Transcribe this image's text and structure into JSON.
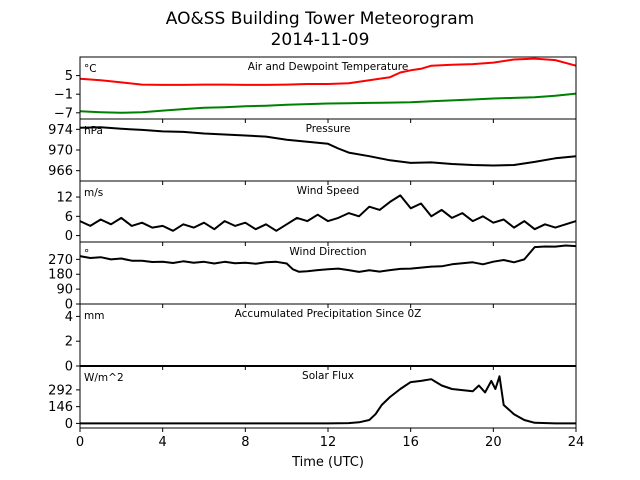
{
  "figure": {
    "title": "AO&SS Building Tower Meteorogram",
    "subtitle": "2014-11-09",
    "xlabel": "Time (UTC)"
  },
  "chart_data": [
    {
      "type": "line",
      "title": "Air and Dewpoint Temperature",
      "unit_label": "°C",
      "xlim": [
        0,
        24
      ],
      "ylim": [
        -9,
        11
      ],
      "yticks": [
        -7,
        -1,
        5
      ],
      "ytick_labels": [
        "−7",
        "−1",
        "5"
      ],
      "xticks": [
        0,
        4,
        8,
        12,
        16,
        20,
        24
      ],
      "colors": [
        "#ff0000",
        "#008000"
      ],
      "series": [
        {
          "x": [
            0,
            1,
            2,
            3,
            4,
            5,
            6,
            7,
            8,
            9,
            10,
            11,
            12,
            13,
            14,
            15,
            15.5,
            16,
            16.5,
            17,
            18,
            19,
            20,
            21,
            22,
            23,
            24
          ],
          "y": [
            4.0,
            3.5,
            2.8,
            2.1,
            2.0,
            2.0,
            2.1,
            2.1,
            2.0,
            2.0,
            2.1,
            2.3,
            2.3,
            2.5,
            3.5,
            4.5,
            6.0,
            6.7,
            7.2,
            8.2,
            8.5,
            8.7,
            9.2,
            10.2,
            10.5,
            10.0,
            8.2
          ]
        },
        {
          "x": [
            0,
            1,
            2,
            3,
            4,
            5,
            6,
            7,
            8,
            9,
            10,
            11,
            12,
            13,
            14,
            15,
            16,
            17,
            18,
            19,
            20,
            21,
            22,
            23,
            24
          ],
          "y": [
            -6.5,
            -6.8,
            -7.0,
            -6.8,
            -6.3,
            -5.8,
            -5.4,
            -5.2,
            -4.9,
            -4.7,
            -4.4,
            -4.2,
            -4.0,
            -3.9,
            -3.8,
            -3.7,
            -3.6,
            -3.3,
            -3.0,
            -2.7,
            -2.4,
            -2.2,
            -2.0,
            -1.5,
            -0.8
          ]
        }
      ]
    },
    {
      "type": "line",
      "title": "Pressure",
      "unit_label": "hPa",
      "xlim": [
        0,
        24
      ],
      "ylim": [
        964,
        976
      ],
      "yticks": [
        966,
        970,
        974
      ],
      "ytick_labels": [
        "966",
        "970",
        "974"
      ],
      "xticks": [
        0,
        4,
        8,
        12,
        16,
        20,
        24
      ],
      "colors": [
        "#000000"
      ],
      "series": [
        {
          "x": [
            0,
            1,
            2,
            3,
            4,
            5,
            6,
            7,
            8,
            9,
            10,
            11,
            12,
            12.5,
            13,
            14,
            15,
            16,
            17,
            18,
            19,
            20,
            21,
            22,
            23,
            24
          ],
          "y": [
            974.3,
            974.4,
            974.1,
            973.9,
            973.6,
            973.5,
            973.2,
            973.0,
            972.8,
            972.6,
            972.0,
            971.6,
            971.2,
            970.3,
            969.5,
            968.8,
            968.0,
            967.5,
            967.6,
            967.3,
            967.1,
            967.0,
            967.1,
            967.7,
            968.4,
            968.8
          ]
        }
      ]
    },
    {
      "type": "line",
      "title": "Wind Speed",
      "unit_label": "m/s",
      "xlim": [
        0,
        24
      ],
      "ylim": [
        -2,
        17
      ],
      "yticks": [
        0,
        6,
        12
      ],
      "ytick_labels": [
        "0",
        "6",
        "12"
      ],
      "xticks": [
        0,
        4,
        8,
        12,
        16,
        20,
        24
      ],
      "colors": [
        "#000000"
      ],
      "series": [
        {
          "x": [
            0,
            0.5,
            1,
            1.5,
            2,
            2.5,
            3,
            3.5,
            4,
            4.5,
            5,
            5.5,
            6,
            6.5,
            7,
            7.5,
            8,
            8.5,
            9,
            9.5,
            10,
            10.5,
            11,
            11.5,
            12,
            12.5,
            13,
            13.5,
            14,
            14.5,
            15,
            15.5,
            16,
            16.5,
            17,
            17.5,
            18,
            18.5,
            19,
            19.5,
            20,
            20.5,
            21,
            21.5,
            22,
            22.5,
            23,
            23.5,
            24
          ],
          "y": [
            4.5,
            3.0,
            5.0,
            3.5,
            5.5,
            3.0,
            4.0,
            2.5,
            3.0,
            1.5,
            3.5,
            2.5,
            4.0,
            2.0,
            4.5,
            3.0,
            4.0,
            2.0,
            3.5,
            1.5,
            3.5,
            5.5,
            4.5,
            6.5,
            4.5,
            5.5,
            7.0,
            6.0,
            9.0,
            8.0,
            10.5,
            12.5,
            8.5,
            10.0,
            6.0,
            8.0,
            5.5,
            7.0,
            4.5,
            6.0,
            4.0,
            5.0,
            2.5,
            4.5,
            2.0,
            3.5,
            2.5,
            3.5,
            4.5
          ]
        }
      ]
    },
    {
      "type": "line",
      "title": "Wind Direction",
      "unit_label": "°",
      "xlim": [
        0,
        24
      ],
      "ylim": [
        0,
        375
      ],
      "yticks": [
        0,
        90,
        180,
        270
      ],
      "ytick_labels": [
        "0",
        "90",
        "180",
        "270"
      ],
      "xticks": [
        0,
        4,
        8,
        12,
        16,
        20,
        24
      ],
      "colors": [
        "#000000"
      ],
      "series": [
        {
          "x": [
            0,
            0.5,
            1,
            1.5,
            2,
            2.5,
            3,
            3.5,
            4,
            4.5,
            5,
            5.5,
            6,
            6.5,
            7,
            7.5,
            8,
            8.5,
            9,
            9.5,
            10,
            10.3,
            10.6,
            11,
            11.5,
            12,
            12.5,
            13,
            13.5,
            14,
            14.5,
            15,
            15.5,
            16,
            16.5,
            17,
            17.5,
            18,
            18.5,
            19,
            19.5,
            20,
            20.5,
            21,
            21.5,
            22,
            22.5,
            23,
            23.5,
            24
          ],
          "y": [
            290,
            278,
            283,
            270,
            275,
            262,
            262,
            254,
            255,
            248,
            258,
            250,
            255,
            245,
            255,
            247,
            250,
            244,
            252,
            255,
            245,
            210,
            195,
            198,
            205,
            210,
            214,
            205,
            194,
            204,
            196,
            205,
            212,
            214,
            220,
            226,
            228,
            240,
            247,
            252,
            240,
            256,
            266,
            252,
            270,
            344,
            348,
            347,
            354,
            350
          ]
        }
      ]
    },
    {
      "type": "line",
      "title": "Accumulated Precipitation Since 0Z",
      "unit_label": "mm",
      "xlim": [
        0,
        24
      ],
      "ylim": [
        0,
        5
      ],
      "yticks": [
        0,
        2,
        4
      ],
      "ytick_labels": [
        "0",
        "2",
        "4"
      ],
      "xticks": [
        0,
        4,
        8,
        12,
        16,
        20,
        24
      ],
      "colors": [
        "#000000"
      ],
      "series": [
        {
          "x": [
            0,
            24
          ],
          "y": [
            0,
            0
          ]
        }
      ]
    },
    {
      "type": "line",
      "title": "Solar Flux",
      "unit_label": "W/m^2",
      "xlim": [
        0,
        24
      ],
      "ylim": [
        -40,
        500
      ],
      "yticks": [
        0,
        146,
        292
      ],
      "ytick_labels": [
        "0",
        "146",
        "292"
      ],
      "xticks": [
        0,
        4,
        8,
        12,
        16,
        20,
        24
      ],
      "xtick_labels": [
        "0",
        "4",
        "8",
        "12",
        "16",
        "20",
        "24"
      ],
      "colors": [
        "#000000"
      ],
      "series": [
        {
          "x": [
            0,
            8,
            12,
            13,
            13.5,
            14,
            14.3,
            14.6,
            15,
            15.5,
            16,
            16.5,
            17,
            17.5,
            18,
            18.5,
            19,
            19.3,
            19.6,
            19.9,
            20.1,
            20.3,
            20.5,
            21,
            21.5,
            22,
            23,
            24
          ],
          "y": [
            0,
            0,
            0,
            3,
            10,
            30,
            80,
            160,
            230,
            300,
            360,
            370,
            385,
            330,
            300,
            290,
            280,
            330,
            270,
            370,
            300,
            410,
            160,
            80,
            30,
            5,
            0,
            0
          ]
        }
      ]
    }
  ]
}
